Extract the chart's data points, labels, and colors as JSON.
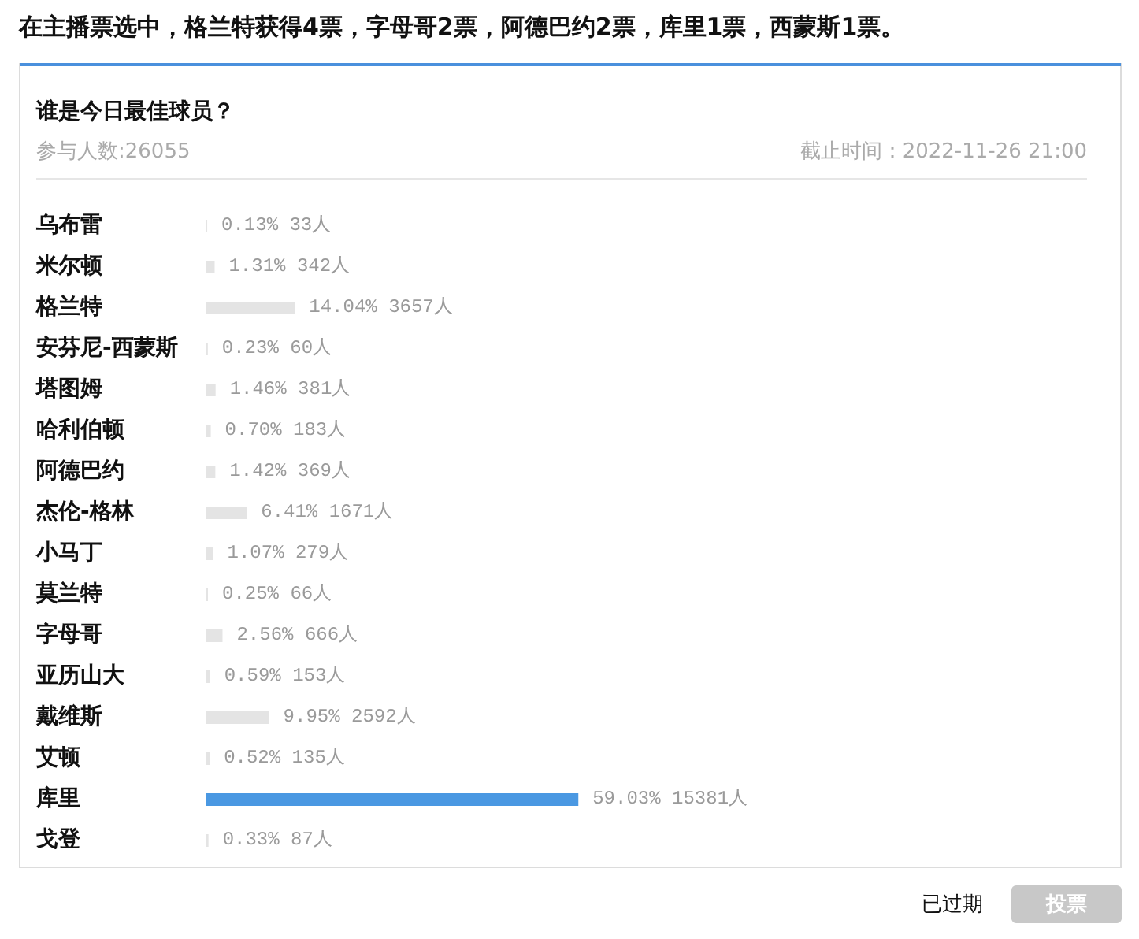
{
  "chart_data": {
    "type": "bar",
    "orientation": "horizontal",
    "title": "谁是今日最佳球员？",
    "subtitle": "参与人数:26055",
    "annotations": [
      "在主播票选中，格兰特获得4票，字母哥2票，阿德巴约2票，库里1票，西蒙斯1票。",
      "截止时间：2022-11-26 21:00",
      "已过期",
      "投票"
    ],
    "categories": [
      "乌布雷",
      "米尔顿",
      "格兰特",
      "安芬尼-西蒙斯",
      "塔图姆",
      "哈利伯顿",
      "阿德巴约",
      "杰伦-格林",
      "小马丁",
      "莫兰特",
      "字母哥",
      "亚历山大",
      "戴维斯",
      "艾顿",
      "库里",
      "戈登"
    ],
    "values": [
      0.13,
      1.31,
      14.04,
      0.23,
      1.46,
      0.7,
      1.42,
      6.41,
      1.07,
      0.25,
      2.56,
      0.59,
      9.95,
      0.52,
      59.03,
      0.33
    ],
    "value_labels": [
      "0.13% 33人",
      "1.31% 342人",
      "14.04% 3657人",
      "0.23% 60人",
      "1.46% 381人",
      "0.70% 183人",
      "1.42% 369人",
      "6.41% 1671人",
      "1.07% 279人",
      "0.25% 66人",
      "2.56% 666人",
      "0.59% 153人",
      "9.95% 2592人",
      "0.52% 135人",
      "59.03% 15381人",
      "0.33% 87人"
    ],
    "colors": [
      "#e4e4e4",
      "#e4e4e4",
      "#e4e4e4",
      "#e4e4e4",
      "#e4e4e4",
      "#e4e4e4",
      "#e4e4e4",
      "#e4e4e4",
      "#e4e4e4",
      "#e4e4e4",
      "#e4e4e4",
      "#e4e4e4",
      "#e4e4e4",
      "#e4e4e4",
      "#4a98e2",
      "#e4e4e4"
    ],
    "tick_labels": "y"
  }
}
